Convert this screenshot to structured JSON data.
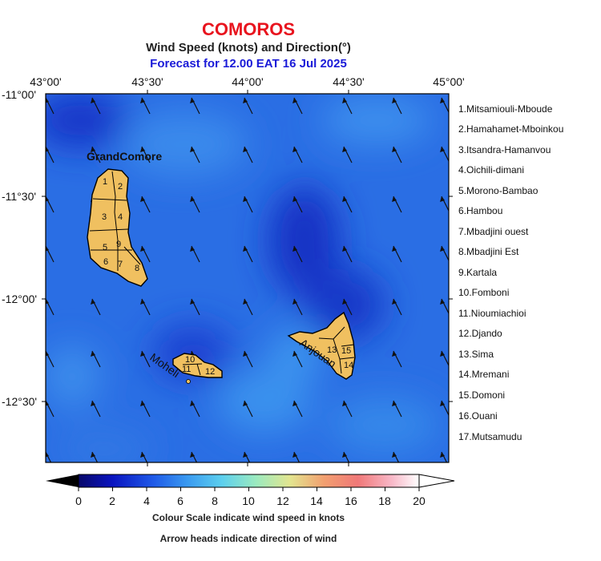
{
  "title": "COMOROS",
  "subtitle": "Wind Speed (knots) and Direction(°)",
  "forecast": "Forecast for  12.00 EAT 16 Jul 2025",
  "lon_ticks": [
    "43°00'",
    "43°30'",
    "44°00'",
    "44°30'",
    "45°00'"
  ],
  "lat_ticks": [
    "-11°00'",
    "-11°30'",
    "-12°00'",
    "-12°30'"
  ],
  "island_labels": {
    "grande_comore": "GrandComore",
    "moheli": "Moheli",
    "anjouan": "Anjouan"
  },
  "region_numbers": [
    "1",
    "2",
    "3",
    "4",
    "5",
    "6",
    "7",
    "8",
    "9",
    "10",
    "11",
    "12",
    "13",
    "14",
    "15"
  ],
  "regions": [
    "1.Mitsamiouli-Mboude",
    "2.Hamahamet-Mboinkou",
    "3.Itsandra-Hamanvou",
    "4.Oichili-dimani",
    "5.Morono-Bambao",
    "6.Hambou",
    "7.Mbadjini ouest",
    "8.Mbadjini Est",
    "9.Kartala",
    "10.Fomboni",
    "11.Nioumiachioi",
    "12.Djando",
    "13.Sima",
    "14.Mremani",
    "15.Domoni",
    "16.Ouani",
    "17.Mutsamudu"
  ],
  "colorbar": {
    "ticks": [
      "0",
      "2",
      "4",
      "6",
      "8",
      "10",
      "12",
      "14",
      "16",
      "18",
      "20"
    ],
    "min": 0,
    "max": 20,
    "colors": [
      "#000000",
      "#0a0aa8",
      "#1f50e8",
      "#3a8ff0",
      "#56c2f0",
      "#8ee8c8",
      "#c8f08a",
      "#f4c070",
      "#f08070",
      "#f4a8b8",
      "#ffffff"
    ]
  },
  "caption_scale": "Colour Scale indicate wind speed in knots",
  "caption_arrows": "Arrow heads indicate direction of wind",
  "colors": {
    "title": "#e8141e",
    "forecast": "#1a1ad8",
    "land": "#f0c060",
    "sea_base": "#2a6fe0"
  }
}
